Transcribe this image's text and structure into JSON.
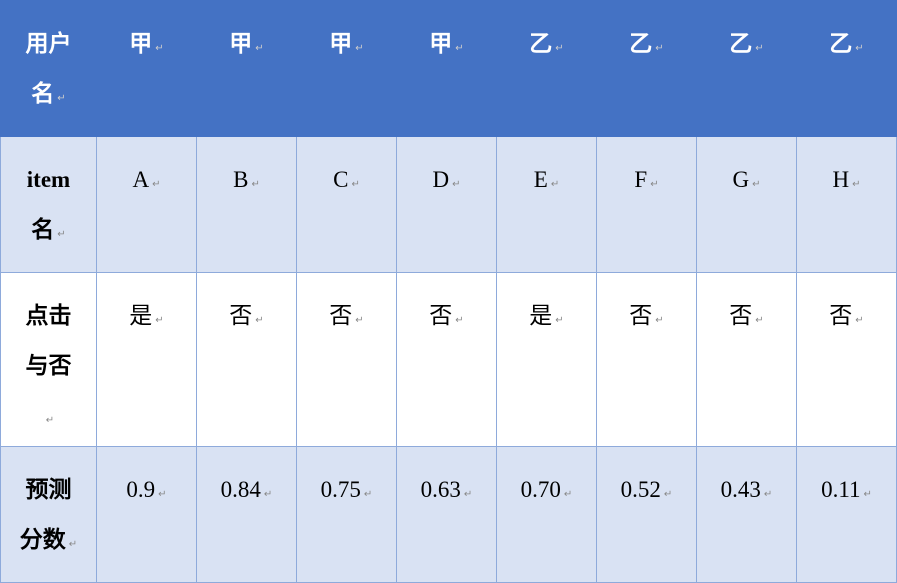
{
  "table": {
    "rows": [
      {
        "label": "用户名",
        "cells": [
          "甲",
          "甲",
          "甲",
          "甲",
          "乙",
          "乙",
          "乙",
          "乙"
        ]
      },
      {
        "label": "item名",
        "cells": [
          "A",
          "B",
          "C",
          "D",
          "E",
          "F",
          "G",
          "H"
        ]
      },
      {
        "label": "点击与否",
        "cells": [
          "是",
          "否",
          "否",
          "否",
          "是",
          "否",
          "否",
          "否"
        ]
      },
      {
        "label": "预测分数",
        "cells": [
          "0.9",
          "0.84",
          "0.75",
          "0.63",
          "0.70",
          "0.52",
          "0.43",
          "0.11"
        ]
      }
    ]
  },
  "paragraph_mark": "↵",
  "colors": {
    "header_bg": "#4472C4",
    "band_bg": "#D9E2F3",
    "border": "#8EAADB"
  }
}
